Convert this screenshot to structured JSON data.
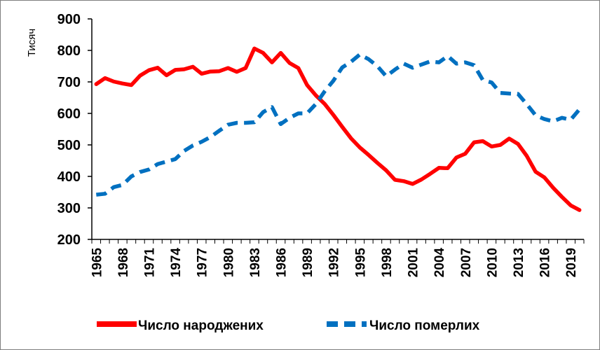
{
  "chart_data": {
    "type": "line",
    "title": "",
    "xlabel": "",
    "ylabel": "Тисяч",
    "ylim": [
      200,
      900
    ],
    "yticks": [
      200,
      300,
      400,
      500,
      600,
      700,
      800,
      900
    ],
    "xlim": [
      1965,
      2020
    ],
    "xtick_labels": [
      "1965",
      "1968",
      "1971",
      "1974",
      "1977",
      "1980",
      "1983",
      "1986",
      "1989",
      "1992",
      "1995",
      "1998",
      "2001",
      "2004",
      "2007",
      "2010",
      "2013",
      "2016",
      "2019"
    ],
    "grid": "none",
    "legend_position": "bottom",
    "x": [
      1965,
      1966,
      1967,
      1968,
      1969,
      1970,
      1971,
      1972,
      1973,
      1974,
      1975,
      1976,
      1977,
      1978,
      1979,
      1980,
      1981,
      1982,
      1983,
      1984,
      1985,
      1986,
      1987,
      1988,
      1989,
      1990,
      1991,
      1992,
      1993,
      1994,
      1995,
      1996,
      1997,
      1998,
      1999,
      2000,
      2001,
      2002,
      2003,
      2004,
      2005,
      2006,
      2007,
      2008,
      2009,
      2010,
      2011,
      2012,
      2013,
      2014,
      2015,
      2016,
      2017,
      2018,
      2019,
      2020
    ],
    "series": [
      {
        "name": "Число народжених",
        "color": "#ff0000",
        "style": "solid",
        "values": [
          693,
          712,
          701,
          695,
          690,
          720,
          737,
          745,
          721,
          738,
          740,
          748,
          726,
          733,
          734,
          744,
          732,
          744,
          806,
          792,
          762,
          792,
          760,
          744,
          690,
          657,
          630,
          595,
          557,
          521,
          492,
          468,
          443,
          419,
          389,
          385,
          376,
          390,
          408,
          427,
          426,
          460,
          472,
          508,
          512,
          495,
          500,
          520,
          503,
          465,
          415,
          397,
          364,
          335,
          308,
          293
        ]
      },
      {
        "name": "Число померлих",
        "color": "#0070c0",
        "style": "dashed",
        "values": [
          342,
          345,
          366,
          373,
          400,
          414,
          422,
          439,
          447,
          455,
          481,
          498,
          510,
          525,
          545,
          564,
          570,
          570,
          572,
          604,
          620,
          566,
          586,
          600,
          600,
          630,
          670,
          704,
          746,
          764,
          787,
          772,
          750,
          718,
          739,
          758,
          745,
          755,
          765,
          762,
          782,
          758,
          762,
          753,
          706,
          698,
          665,
          663,
          662,
          629,
          594,
          582,
          575,
          586,
          580,
          613
        ]
      }
    ]
  }
}
